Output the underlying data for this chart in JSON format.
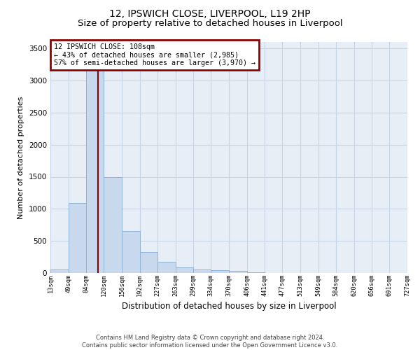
{
  "title": "12, IPSWICH CLOSE, LIVERPOOL, L19 2HP",
  "subtitle": "Size of property relative to detached houses in Liverpool",
  "xlabel": "Distribution of detached houses by size in Liverpool",
  "ylabel": "Number of detached properties",
  "footer_line1": "Contains HM Land Registry data © Crown copyright and database right 2024.",
  "footer_line2": "Contains public sector information licensed under the Open Government Licence v3.0.",
  "annotation_title": "12 IPSWICH CLOSE: 108sqm",
  "annotation_line1": "← 43% of detached houses are smaller (2,985)",
  "annotation_line2": "57% of semi-detached houses are larger (3,970) →",
  "property_size": 108,
  "bar_edges": [
    13,
    49,
    84,
    120,
    156,
    192,
    227,
    263,
    299,
    334,
    370,
    406,
    441,
    477,
    513,
    549,
    584,
    620,
    656,
    691,
    727
  ],
  "bar_heights": [
    50,
    1090,
    3280,
    1490,
    650,
    330,
    175,
    90,
    60,
    40,
    30,
    10,
    5,
    3,
    2,
    1,
    0,
    0,
    0,
    0
  ],
  "bar_color": "#c8d9ee",
  "bar_edge_color": "#8eb4d8",
  "vline_color": "#8b0000",
  "vline_x": 108,
  "annotation_box_color": "#8b0000",
  "ylim": [
    0,
    3600
  ],
  "yticks": [
    0,
    500,
    1000,
    1500,
    2000,
    2500,
    3000,
    3500
  ],
  "grid_color": "#c8d4e8",
  "bg_color": "#e8eef6",
  "title_fontsize": 10,
  "subtitle_fontsize": 9.5,
  "xlabel_fontsize": 8.5,
  "ylabel_fontsize": 8
}
